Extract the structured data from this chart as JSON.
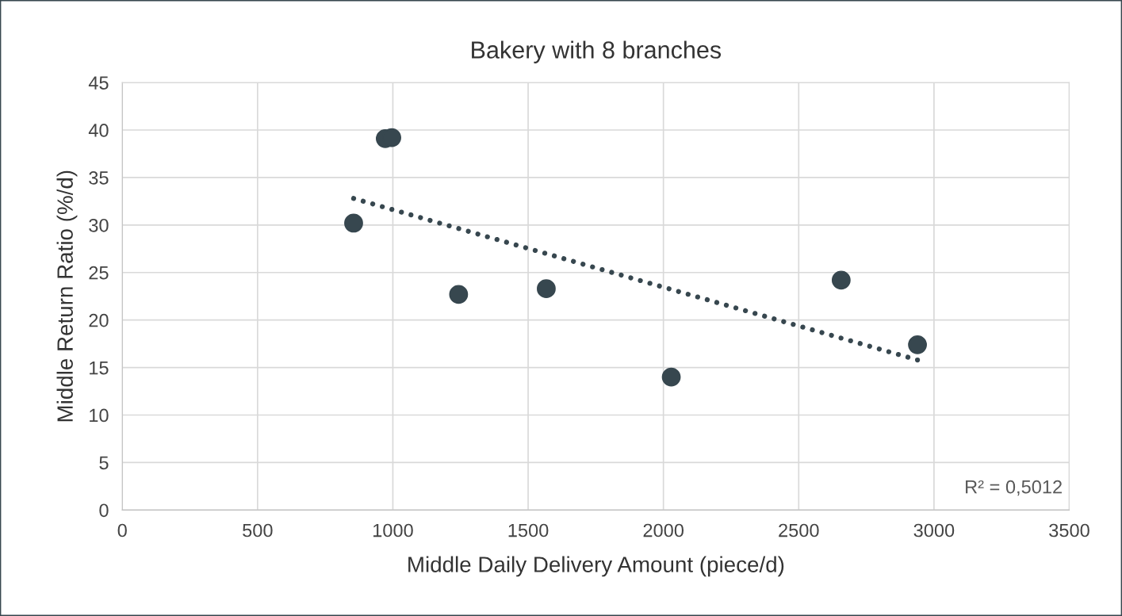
{
  "chart_data": {
    "type": "scatter",
    "title": "Bakery with 8 branches",
    "xlabel": "Middle Daily Delivery Amount (piece/d)",
    "ylabel": "Middle Return Ratio (%/d)",
    "series": [
      {
        "type": "scatter",
        "color": "#37474f",
        "marker": "circle",
        "x": [
          855,
          972,
          996,
          1243,
          1567,
          2029,
          2657,
          2939
        ],
        "values": [
          30.2,
          39.1,
          39.2,
          22.7,
          23.3,
          14.0,
          24.2,
          17.4
        ]
      },
      {
        "type": "line",
        "color": "#37474f",
        "line_style": "dotted",
        "marker": "none",
        "x": [
          855,
          2939
        ],
        "values": [
          32.8,
          15.8
        ]
      }
    ],
    "annotations": [
      "R² = 0,5012"
    ],
    "xlim": [
      0,
      3500
    ],
    "xticks": [
      0,
      500,
      1000,
      1500,
      2000,
      2500,
      3000,
      3500
    ],
    "ylim": [
      0,
      45
    ],
    "yticks": [
      0,
      5,
      10,
      15,
      20,
      25,
      30,
      35,
      40,
      45
    ],
    "grid": true,
    "legend": false
  }
}
